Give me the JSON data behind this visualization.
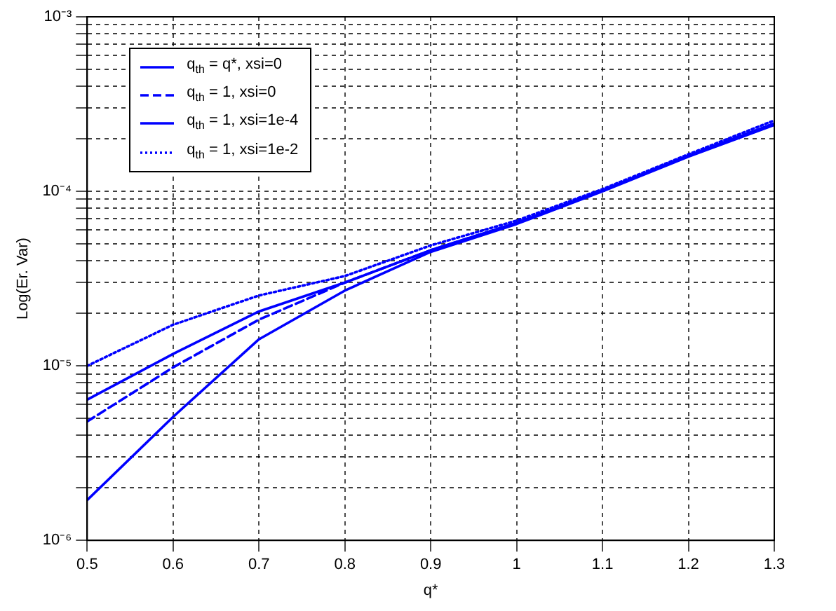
{
  "chart_data": {
    "type": "line",
    "xlabel": "q*",
    "ylabel": "Log(Er. Var)",
    "log": "y",
    "grid": true,
    "legend": "top left",
    "marker": "none",
    "xlim": [
      0.5,
      1.3
    ],
    "xticks": [
      0.5,
      0.6,
      0.7,
      0.8,
      0.9,
      1,
      1.1,
      1.2,
      1.3
    ],
    "ylim": [
      1e-06,
      0.001
    ],
    "yticks": [
      {
        "value": 1e-06,
        "label": "10⁻⁶"
      },
      {
        "value": 2e-06,
        "label": null
      },
      {
        "value": 3e-06,
        "label": null
      },
      {
        "value": 4e-06,
        "label": null
      },
      {
        "value": 5e-06,
        "label": null
      },
      {
        "value": 6e-06,
        "label": null
      },
      {
        "value": 7e-06,
        "label": null
      },
      {
        "value": 8e-06,
        "label": null
      },
      {
        "value": 9e-06,
        "label": null
      },
      {
        "value": 1e-05,
        "label": "10⁻⁵"
      },
      {
        "value": 2e-05,
        "label": null
      },
      {
        "value": 3e-05,
        "label": null
      },
      {
        "value": 4e-05,
        "label": null
      },
      {
        "value": 5e-05,
        "label": null
      },
      {
        "value": 6e-05,
        "label": null
      },
      {
        "value": 7e-05,
        "label": null
      },
      {
        "value": 8e-05,
        "label": null
      },
      {
        "value": 9e-05,
        "label": null
      },
      {
        "value": 0.0001,
        "label": "10⁻⁴"
      },
      {
        "value": 0.0002,
        "label": null
      },
      {
        "value": 0.0003,
        "label": null
      },
      {
        "value": 0.0004,
        "label": null
      },
      {
        "value": 0.0005,
        "label": null
      },
      {
        "value": 0.0006,
        "label": null
      },
      {
        "value": 0.0007,
        "label": null
      },
      {
        "value": 0.0008,
        "label": null
      },
      {
        "value": 0.0009,
        "label": null
      },
      {
        "value": 0.001,
        "label": "10⁻³"
      }
    ],
    "x": [
      0.5,
      0.6,
      0.7,
      0.8,
      0.9,
      1,
      1.1,
      1.2,
      1.3
    ],
    "series": [
      {
        "name": "q$_{th}$ = q*, xsi=0",
        "color": "#0000ff",
        "line_style": "solid",
        "values": [
          1.7e-06,
          5.1e-06,
          1.42e-05,
          2.7e-05,
          4.5e-05,
          6.5e-05,
          0.0001,
          0.000158,
          0.00024
        ]
      },
      {
        "name": "q$_{th}$ = 1, xsi=0",
        "color": "#0000ff",
        "line_style": "dashed",
        "values": [
          4.8e-06,
          9.8e-06,
          1.84e-05,
          3e-05,
          4.6e-05,
          6.6e-05,
          0.000101,
          0.00016,
          0.000245
        ]
      },
      {
        "name": "q$_{th}$ = 1, xsi=1e-4",
        "color": "#0000ff",
        "line_style": "solid",
        "values": [
          6.4e-06,
          1.17e-05,
          2.05e-05,
          3e-05,
          4.6e-05,
          6.6e-05,
          0.000101,
          0.00016,
          0.000245
        ]
      },
      {
        "name": "q$_{th}$ = 1, xsi=1e-2",
        "color": "#0000ff",
        "line_style": "dotted",
        "values": [
          1e-05,
          1.72e-05,
          2.53e-05,
          3.27e-05,
          4.9e-05,
          6.8e-05,
          0.000103,
          0.000163,
          0.000255
        ]
      }
    ]
  }
}
